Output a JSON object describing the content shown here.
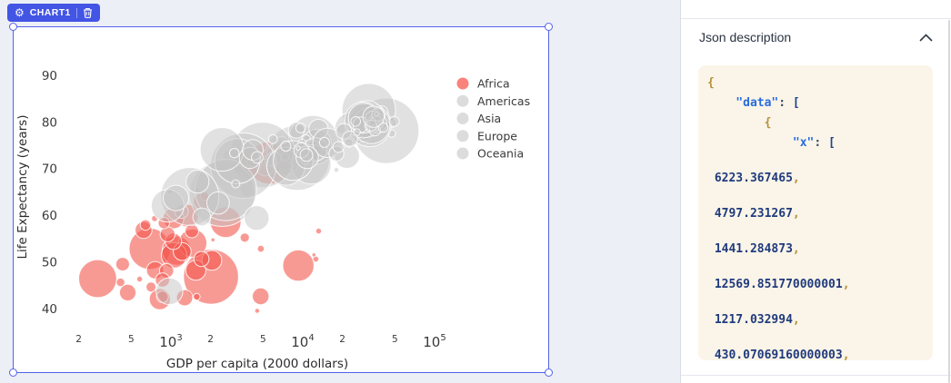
{
  "badge": {
    "label": "CHART1",
    "settings_icon": "gear-icon",
    "delete_icon": "trash-icon",
    "accent_color": "#4355e4",
    "selection_color": "#5263e8"
  },
  "json_panel": {
    "title": "Json description",
    "collapse_icon": "chevron-up-icon",
    "code_bg": "#faf5e8",
    "code_lines": [
      {
        "indent": 0,
        "num": false,
        "tokens": [
          [
            "{",
            "brace"
          ]
        ]
      },
      {
        "indent": 4,
        "num": false,
        "tokens": [
          [
            "\"data\"",
            "key"
          ],
          [
            ":",
            "colon"
          ],
          [
            " ",
            "plain"
          ],
          [
            "[",
            "bracket"
          ]
        ]
      },
      {
        "indent": 8,
        "num": false,
        "tokens": [
          [
            "{",
            "brace"
          ]
        ]
      },
      {
        "indent": 12,
        "num": false,
        "tokens": [
          [
            "\"x\"",
            "key"
          ],
          [
            ":",
            "colon"
          ],
          [
            " ",
            "plain"
          ],
          [
            "[",
            "bracket"
          ]
        ]
      },
      {
        "indent": 1,
        "num": true,
        "tokens": [
          [
            "6223.367465",
            "num"
          ],
          [
            ",",
            "comma"
          ]
        ]
      },
      {
        "indent": 1,
        "num": true,
        "tokens": [
          [
            "4797.231267",
            "num"
          ],
          [
            ",",
            "comma"
          ]
        ]
      },
      {
        "indent": 1,
        "num": true,
        "tokens": [
          [
            "1441.284873",
            "num"
          ],
          [
            ",",
            "comma"
          ]
        ]
      },
      {
        "indent": 1,
        "num": true,
        "tokens": [
          [
            "12569.851770000001",
            "num"
          ],
          [
            ",",
            "comma"
          ]
        ]
      },
      {
        "indent": 1,
        "num": true,
        "tokens": [
          [
            "1217.032994",
            "num"
          ],
          [
            ",",
            "comma"
          ]
        ]
      },
      {
        "indent": 1,
        "num": true,
        "tokens": [
          [
            "430.07069160000003",
            "num"
          ],
          [
            ",",
            "comma"
          ]
        ]
      }
    ]
  },
  "chart_data": {
    "type": "scatter",
    "subtype": "bubble",
    "xlabel": "GDP per capita (2000 dollars)",
    "ylabel": "Life Expectancy (years)",
    "x_scale": "log",
    "x_range": [
      150,
      130000
    ],
    "y_range": [
      36,
      94
    ],
    "grid": false,
    "legend_position": "top-right",
    "x_ticks": [
      {
        "v": 200,
        "label": "2",
        "minor": true
      },
      {
        "v": 500,
        "label": "5",
        "minor": true
      },
      {
        "v": 1000,
        "label": "10",
        "exp": "3",
        "minor": false
      },
      {
        "v": 2000,
        "label": "2",
        "minor": true
      },
      {
        "v": 5000,
        "label": "5",
        "minor": true
      },
      {
        "v": 10000,
        "label": "10",
        "exp": "4",
        "minor": false
      },
      {
        "v": 20000,
        "label": "2",
        "minor": true
      },
      {
        "v": 50000,
        "label": "5",
        "minor": true
      },
      {
        "v": 100000,
        "label": "10",
        "exp": "5",
        "minor": false
      }
    ],
    "y_ticks": [
      90,
      80,
      70,
      60,
      50,
      40
    ],
    "point_format": [
      "gdp_per_capita",
      "life_expectancy_years",
      "population_millions"
    ],
    "series": [
      {
        "name": "Africa",
        "color": "#f4564c",
        "fill_opacity": 0.6,
        "legend_color": "#f9837b",
        "points": [
          [
            6223,
            72.3,
            33.3
          ],
          [
            4797,
            42.7,
            12.4
          ],
          [
            1441,
            56.7,
            8.1
          ],
          [
            12570,
            50.7,
            1.6
          ],
          [
            1217,
            52.3,
            14.3
          ],
          [
            430,
            49.6,
            8.4
          ],
          [
            2042,
            50.4,
            17.7
          ],
          [
            706,
            44.7,
            4.4
          ],
          [
            1704,
            50.7,
            10.2
          ],
          [
            986,
            65.2,
            0.7
          ],
          [
            278,
            46.5,
            64.6
          ],
          [
            3633,
            55.3,
            3.8
          ],
          [
            1545,
            48.3,
            18.0
          ],
          [
            2082,
            54.8,
            0.5
          ],
          [
            5581,
            71.3,
            80.3
          ],
          [
            12154,
            51.6,
            0.55
          ],
          [
            641,
            58.0,
            4.9
          ],
          [
            691,
            52.9,
            76.5
          ],
          [
            13206,
            56.7,
            1.5
          ],
          [
            753,
            59.4,
            1.7
          ],
          [
            1328,
            60.0,
            22.9
          ],
          [
            943,
            56.0,
            9.9
          ],
          [
            579,
            46.4,
            1.5
          ],
          [
            1463,
            54.1,
            35.6
          ],
          [
            1569,
            42.6,
            2.0
          ],
          [
            415,
            45.7,
            3.2
          ],
          [
            12057,
            74.0,
            6.0
          ],
          [
            1045,
            59.4,
            19.2
          ],
          [
            759,
            48.3,
            13.3
          ],
          [
            1043,
            54.5,
            12.0
          ],
          [
            1803,
            64.2,
            3.3
          ],
          [
            10957,
            72.8,
            1.3
          ],
          [
            3820,
            71.2,
            33.8
          ],
          [
            824,
            42.1,
            20.0
          ],
          [
            4811,
            52.9,
            2.1
          ],
          [
            620,
            56.9,
            12.9
          ],
          [
            2014,
            46.9,
            135.0
          ],
          [
            7670,
            76.4,
            0.8
          ],
          [
            863,
            46.2,
            8.9
          ],
          [
            1598,
            65.5,
            0.2
          ],
          [
            1712,
            63.1,
            12.3
          ],
          [
            863,
            42.6,
            6.1
          ],
          [
            926,
            48.2,
            9.1
          ],
          [
            9270,
            49.3,
            44.0
          ],
          [
            2602,
            58.6,
            42.3
          ],
          [
            4513,
            39.6,
            1.1
          ],
          [
            1107,
            52.5,
            38.1
          ],
          [
            883,
            58.4,
            5.7
          ],
          [
            7093,
            73.9,
            10.3
          ],
          [
            1056,
            51.5,
            29.2
          ],
          [
            1271,
            42.4,
            11.7
          ],
          [
            470,
            43.5,
            12.3
          ]
        ]
      },
      {
        "name": "Americas",
        "color": "#c4c4c4",
        "fill_opacity": 0.5,
        "legend_color": "#dcdcdc",
        "points": [
          [
            12779,
            75.3,
            40.3
          ],
          [
            3822,
            65.6,
            9.1
          ],
          [
            9066,
            72.4,
            190.0
          ],
          [
            36319,
            80.7,
            33.4
          ],
          [
            13172,
            78.6,
            16.3
          ],
          [
            7007,
            72.9,
            44.2
          ],
          [
            9645,
            78.8,
            4.1
          ],
          [
            8948,
            78.3,
            11.4
          ],
          [
            6025,
            72.2,
            9.3
          ],
          [
            6873,
            75.0,
            13.8
          ],
          [
            5728,
            71.9,
            6.9
          ],
          [
            5186,
            70.3,
            12.6
          ],
          [
            1202,
            60.9,
            8.5
          ],
          [
            3548,
            70.2,
            7.5
          ],
          [
            7321,
            72.6,
            2.8
          ],
          [
            11978,
            76.2,
            108.7
          ],
          [
            2749,
            72.9,
            5.7
          ],
          [
            9809,
            75.5,
            3.2
          ],
          [
            4173,
            71.8,
            6.7
          ],
          [
            7409,
            71.4,
            28.7
          ],
          [
            19329,
            78.7,
            3.9
          ],
          [
            18009,
            69.8,
            1.1
          ],
          [
            42952,
            78.2,
            301.1
          ],
          [
            10611,
            76.4,
            3.4
          ],
          [
            11416,
            73.7,
            26.1
          ]
        ]
      },
      {
        "name": "Asia",
        "color": "#c4c4c4",
        "fill_opacity": 0.5,
        "legend_color": "#dcdcdc",
        "points": [
          [
            975,
            43.8,
            31.9
          ],
          [
            29796,
            75.6,
            0.7
          ],
          [
            1391,
            64.1,
            150.4
          ],
          [
            1714,
            59.7,
            14.1
          ],
          [
            4959,
            73.0,
            1318.7
          ],
          [
            39725,
            82.2,
            7.0
          ],
          [
            2452,
            64.7,
            1110.4
          ],
          [
            3541,
            70.7,
            223.5
          ],
          [
            11606,
            71.0,
            69.5
          ],
          [
            4471,
            59.5,
            27.5
          ],
          [
            25523,
            80.7,
            6.4
          ],
          [
            31656,
            82.6,
            127.5
          ],
          [
            4519,
            72.5,
            6.1
          ],
          [
            1593,
            67.3,
            23.3
          ],
          [
            23348,
            78.6,
            49.0
          ],
          [
            47307,
            77.6,
            2.5
          ],
          [
            10461,
            72.0,
            3.9
          ],
          [
            12452,
            74.2,
            24.8
          ],
          [
            3096,
            66.8,
            2.9
          ],
          [
            944,
            62.1,
            47.8
          ],
          [
            1091,
            63.8,
            28.9
          ],
          [
            22316,
            75.6,
            3.2
          ],
          [
            2606,
            65.5,
            169.3
          ],
          [
            3190,
            71.7,
            91.1
          ],
          [
            21655,
            72.8,
            27.6
          ],
          [
            47143,
            80.0,
            4.6
          ],
          [
            3970,
            72.4,
            20.4
          ],
          [
            4185,
            74.1,
            19.3
          ],
          [
            28718,
            78.4,
            23.2
          ],
          [
            7458,
            70.6,
            65.1
          ],
          [
            2442,
            74.2,
            85.3
          ],
          [
            3025,
            73.4,
            4.0
          ],
          [
            2281,
            62.7,
            22.2
          ]
        ]
      },
      {
        "name": "Europe",
        "color": "#c4c4c4",
        "fill_opacity": 0.5,
        "legend_color": "#dcdcdc",
        "points": [
          [
            5937,
            76.4,
            3.6
          ],
          [
            36126,
            79.8,
            8.2
          ],
          [
            33693,
            79.4,
            10.4
          ],
          [
            7446,
            74.9,
            4.6
          ],
          [
            10681,
            73.0,
            7.3
          ],
          [
            14619,
            75.7,
            4.5
          ],
          [
            22833,
            76.5,
            10.2
          ],
          [
            35278,
            78.3,
            5.5
          ],
          [
            33207,
            79.3,
            5.2
          ],
          [
            30470,
            80.7,
            61.1
          ],
          [
            32170,
            79.4,
            82.4
          ],
          [
            27538,
            79.5,
            10.7
          ],
          [
            18009,
            73.3,
            10.0
          ],
          [
            36181,
            81.8,
            0.3
          ],
          [
            40676,
            78.9,
            4.1
          ],
          [
            28570,
            80.5,
            58.1
          ],
          [
            9254,
            74.5,
            0.7
          ],
          [
            36798,
            79.8,
            16.6
          ],
          [
            49357,
            80.2,
            4.6
          ],
          [
            15390,
            75.6,
            38.5
          ],
          [
            20510,
            78.1,
            10.6
          ],
          [
            10808,
            72.5,
            22.3
          ],
          [
            9787,
            74.0,
            10.2
          ],
          [
            18678,
            74.7,
            5.4
          ],
          [
            25768,
            77.9,
            2.0
          ],
          [
            28821,
            80.9,
            40.4
          ],
          [
            33860,
            80.9,
            9.0
          ],
          [
            37506,
            81.7,
            7.6
          ],
          [
            8458,
            71.8,
            71.2
          ],
          [
            33203,
            79.4,
            60.8
          ]
        ]
      },
      {
        "name": "Oceania",
        "color": "#c4c4c4",
        "fill_opacity": 0.5,
        "legend_color": "#dcdcdc",
        "points": [
          [
            34435,
            81.2,
            20.4
          ],
          [
            25185,
            80.2,
            4.1
          ]
        ]
      }
    ]
  }
}
